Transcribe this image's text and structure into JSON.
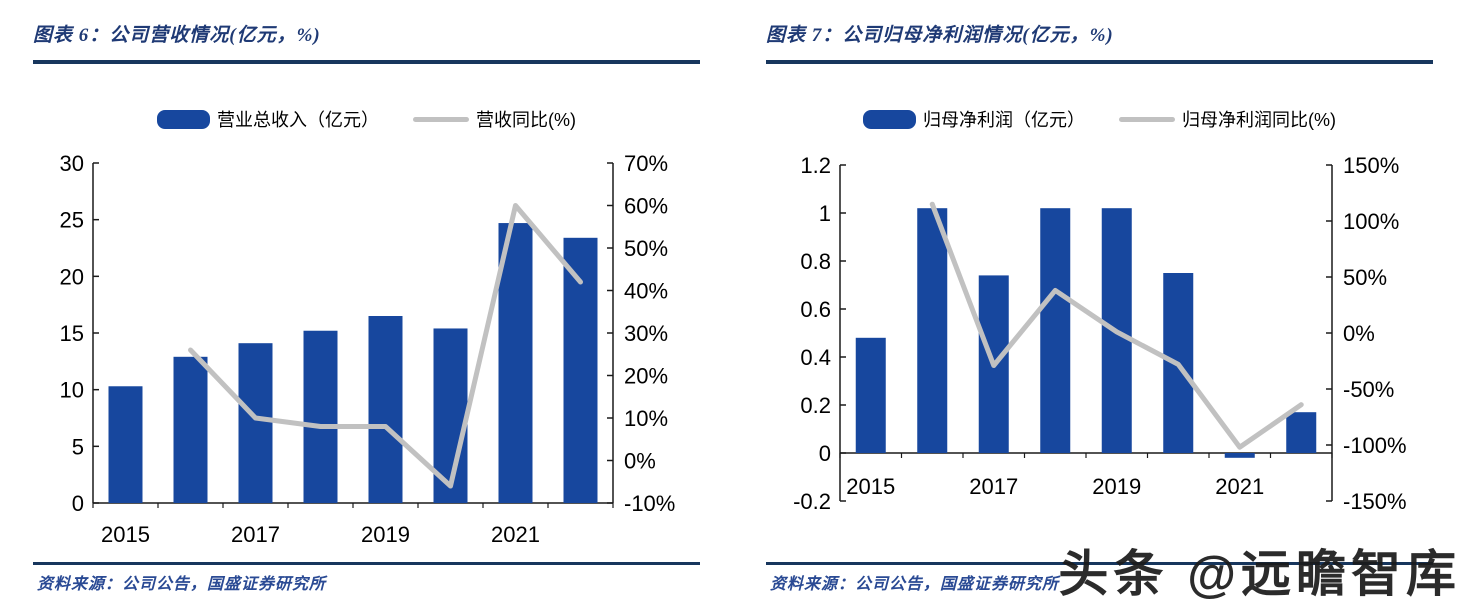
{
  "watermark": "头条 @远瞻智库",
  "colors": {
    "bar": "#17479e",
    "line": "#c1c1c1",
    "axis": "#1a1a1a",
    "title": "#1f3a75",
    "rule": "#17365d",
    "source": "#2a4a94",
    "watermark": "#1b1b1b"
  },
  "panels": [
    {
      "title": "图表 6：公司营收情况(亿元，%)",
      "legend": [
        {
          "type": "bar",
          "label": "营业总收入（亿元）"
        },
        {
          "type": "line",
          "label": "营收同比(%)"
        }
      ],
      "source": "资料来源：公司公告，国盛证券研究所"
    },
    {
      "title": "图表 7：公司归母净利润情况(亿元，%)",
      "legend": [
        {
          "type": "bar",
          "label": "归母净利润（亿元）"
        },
        {
          "type": "line",
          "label": "归母净利润同比(%)"
        }
      ],
      "source": "资料来源：公司公告，国盛证券研究所"
    }
  ],
  "chart_data": [
    {
      "type": "bar",
      "subtype": "combo-bar-line-dual-axis",
      "title": "公司营收情况(亿元，%)",
      "categories": [
        "2015",
        "2016",
        "2017",
        "2018",
        "2019",
        "2020",
        "2021",
        "2022"
      ],
      "series": [
        {
          "name": "营业总收入（亿元）",
          "type": "bar",
          "axis": "left",
          "values": [
            10.3,
            12.9,
            14.1,
            15.2,
            16.5,
            15.4,
            24.7,
            23.4
          ]
        },
        {
          "name": "营收同比(%)",
          "type": "line",
          "axis": "right",
          "values": [
            null,
            26,
            10,
            8,
            8,
            -6,
            60,
            42
          ]
        }
      ],
      "left_axis": {
        "min": 0,
        "max": 30,
        "step": 5,
        "labels": [
          "0",
          "5",
          "10",
          "15",
          "20",
          "25",
          "30"
        ]
      },
      "right_axis": {
        "min": -10,
        "max": 70,
        "step": 10,
        "labels": [
          "-10%",
          "0%",
          "10%",
          "20%",
          "30%",
          "40%",
          "50%",
          "60%",
          "70%"
        ]
      },
      "x_tick_labels": [
        "2015",
        "2017",
        "2019",
        "2021"
      ],
      "x_label_positions": [
        0,
        2,
        4,
        6
      ],
      "grid": false,
      "legend_position": "top"
    },
    {
      "type": "bar",
      "subtype": "combo-bar-line-dual-axis",
      "title": "公司归母净利润情况(亿元，%)",
      "categories": [
        "2015",
        "2016",
        "2017",
        "2018",
        "2019",
        "2020",
        "2021",
        "2022"
      ],
      "series": [
        {
          "name": "归母净利润（亿元）",
          "type": "bar",
          "axis": "left",
          "values": [
            0.48,
            1.02,
            0.74,
            1.02,
            1.02,
            0.75,
            -0.02,
            0.17
          ]
        },
        {
          "name": "归母净利润同比(%)",
          "type": "line",
          "axis": "right",
          "values": [
            null,
            115,
            -29,
            38,
            1,
            -28,
            -102,
            -64
          ]
        }
      ],
      "left_axis": {
        "min": -0.2,
        "max": 1.2,
        "step": 0.2,
        "labels": [
          "-0.2",
          "0",
          "0.2",
          "0.4",
          "0.6",
          "0.8",
          "1",
          "1.2"
        ]
      },
      "right_axis": {
        "min": -150,
        "max": 150,
        "step": 50,
        "labels": [
          "-150%",
          "-100%",
          "-50%",
          "0%",
          "50%",
          "100%",
          "150%"
        ]
      },
      "x_tick_labels": [
        "2015",
        "2017",
        "2019",
        "2021"
      ],
      "x_label_positions": [
        0,
        2,
        4,
        6
      ],
      "grid": false,
      "legend_position": "top"
    }
  ]
}
